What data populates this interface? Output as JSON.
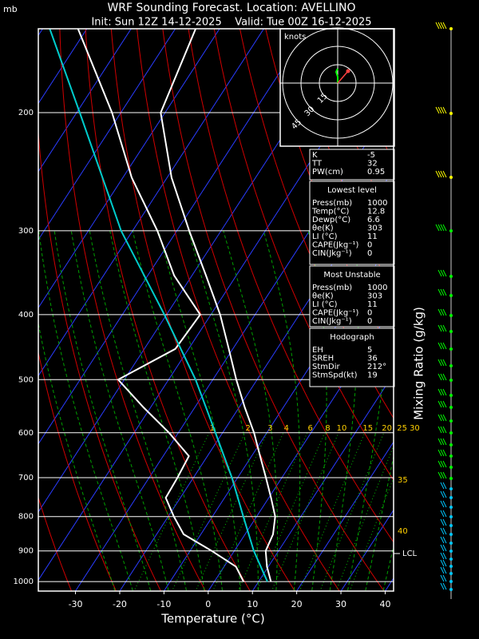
{
  "header": {
    "unit": "mb",
    "title": "WRF Sounding Forecast. Location: AVELLINO",
    "subtitle": "Init: Sun 12Z 14-12-2025    Valid: Tue 00Z 16-12-2025"
  },
  "chart_data": {
    "type": "skewt",
    "x_label": "Temperature (°C)",
    "y2_label": "Mixing Ratio (g/kg)",
    "xlim": [
      -38.4,
      41.9
    ],
    "ylim": [
      1033,
      150
    ],
    "log_y": true,
    "xticks": [
      -30,
      -20,
      -10,
      0,
      10,
      20,
      30,
      40
    ],
    "yticks": [
      200,
      300,
      400,
      500,
      600,
      700,
      800,
      900,
      1000
    ],
    "mixing_ratio": [
      1,
      2,
      3,
      4,
      6,
      8,
      10,
      15,
      20,
      25,
      30
    ],
    "right_labels": [
      "35",
      "40",
      "LCL"
    ],
    "series": [
      {
        "color": "#ffffff",
        "y": [
          1000,
          950,
          900,
          850,
          800,
          750,
          700,
          650,
          600,
          550,
          500,
          450,
          400,
          350,
          300,
          250,
          200,
          150
        ],
        "values": [
          12.8,
          9.7,
          7.1,
          6.3,
          4.2,
          0.5,
          -3.6,
          -8.1,
          -12.9,
          -18.7,
          -24.7,
          -30.9,
          -37.9,
          -46.8,
          -57.2,
          -69,
          -81,
          -85.4
        ]
      },
      {
        "color": "#ffffff",
        "y": [
          1000,
          950,
          900,
          850,
          800,
          750,
          700,
          650,
          600,
          550,
          500,
          450,
          400,
          350,
          300,
          250,
          200,
          150
        ],
        "values": [
          6.6,
          2.7,
          -5.1,
          -13.9,
          -18.7,
          -23.3,
          -23.6,
          -24.2,
          -32.1,
          -41.6,
          -51.4,
          -43,
          -42.4,
          -54,
          -64.4,
          -78,
          -92,
          -112
        ]
      },
      {
        "color": "#00cccc",
        "y": [
          1000,
          900,
          800,
          700,
          600,
          500,
          400,
          300,
          200,
          150
        ],
        "values": [
          12,
          4.4,
          -3,
          -11.3,
          -21.6,
          -33.9,
          -50.5,
          -72.6,
          -99.3,
          -118.4
        ]
      }
    ]
  },
  "hodograph": {
    "unit": "knots",
    "rings": [
      "15",
      "30",
      "45"
    ]
  },
  "panels": [
    {
      "rows": [
        [
          "K",
          "-5"
        ],
        [
          "TT",
          "32"
        ],
        [
          "PW(cm)",
          "0.95"
        ]
      ]
    },
    {
      "title": "Lowest level",
      "rows": [
        [
          "Press(mb)",
          "1000"
        ],
        [
          "Temp(°C)",
          "12.8"
        ],
        [
          "Dewp(°C)",
          "6.6"
        ],
        [
          "θe(K)",
          "303"
        ],
        [
          "LI (°C)",
          "11"
        ],
        [
          "CAPE(Jkg⁻¹)",
          "0"
        ],
        [
          "CIN(Jkg⁻¹)",
          "0"
        ]
      ]
    },
    {
      "title": "Most Unstable",
      "rows": [
        [
          "Press(mb)",
          "1000"
        ],
        [
          "θe(K)",
          "303"
        ],
        [
          "LI (°C)",
          "11"
        ],
        [
          "CAPE(Jkg⁻¹)",
          "0"
        ],
        [
          "CIN(Jkg⁻¹)",
          "0"
        ]
      ]
    },
    {
      "title": "Hodograph",
      "rows": [
        [
          "EH",
          "5"
        ],
        [
          "SREH",
          "36"
        ],
        [
          "StmDir",
          "212°"
        ],
        [
          "StmSpd(kt)",
          "19"
        ]
      ]
    }
  ]
}
